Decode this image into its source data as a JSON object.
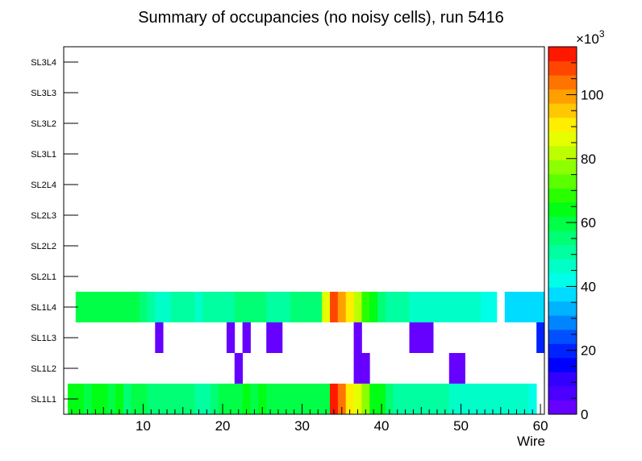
{
  "chart_data": {
    "type": "heatmap",
    "title": "Summary of occupancies (no noisy cells), run 5416",
    "xlabel": "Wire",
    "ylabel": "",
    "xlim": [
      0,
      60.5
    ],
    "x_ticks": [
      10,
      20,
      30,
      40,
      50,
      60
    ],
    "y_categories": [
      "SL1L1",
      "SL1L2",
      "SL1L3",
      "SL1L4",
      "SL2L1",
      "SL2L2",
      "SL2L3",
      "SL2L4",
      "SL3L1",
      "SL3L2",
      "SL3L3",
      "SL3L4"
    ],
    "z_range": [
      0,
      115000
    ],
    "z_ticks": [
      0,
      20,
      40,
      60,
      80,
      100
    ],
    "z_multiplier": "×10",
    "z_exponent": "3",
    "palette": [
      "#6600ff",
      "#4b00ff",
      "#3300ff",
      "#0000ff",
      "#0022ff",
      "#0050ff",
      "#0085ff",
      "#00b3ff",
      "#00dcff",
      "#00ffe8",
      "#00ffc8",
      "#00ffa0",
      "#00ff74",
      "#00ff46",
      "#00ff14",
      "#2aff00",
      "#5cff00",
      "#8cff00",
      "#bdff00",
      "#e6ff00",
      "#ffee00",
      "#ffc800",
      "#ffa000",
      "#ff7400",
      "#ff4600",
      "#ff1800"
    ],
    "rows": [
      {
        "layer": "SL1L1",
        "wires": [
          1,
          2,
          3,
          4,
          5,
          6,
          7,
          8,
          9,
          10,
          11,
          12,
          13,
          14,
          15,
          16,
          17,
          18,
          19,
          20,
          21,
          22,
          23,
          24,
          25,
          26,
          27,
          28,
          29,
          30,
          31,
          32,
          33,
          34,
          35,
          36,
          37,
          38,
          39,
          40,
          41,
          42,
          43,
          44,
          45,
          46,
          47,
          48,
          49,
          50,
          51,
          52,
          53,
          54,
          55,
          56,
          57,
          58,
          59
        ],
        "values": [
          62000,
          66000,
          58000,
          62000,
          66000,
          58000,
          62000,
          56000,
          61000,
          58000,
          56000,
          54000,
          54000,
          54000,
          54000,
          55000,
          52000,
          52000,
          56000,
          58000,
          58000,
          58000,
          62000,
          58000,
          62000,
          58000,
          58000,
          58000,
          58000,
          58000,
          58000,
          58000,
          60000,
          112000,
          104000,
          90000,
          85000,
          76000,
          66000,
          62000,
          56000,
          50000,
          50000,
          50000,
          50000,
          50000,
          50000,
          50000,
          45000,
          45000,
          45000,
          45000,
          45000,
          45000,
          45000,
          45000,
          45000,
          45000,
          40000
        ]
      },
      {
        "layer": "SL1L2",
        "wires": [
          22,
          37,
          38,
          49,
          50
        ],
        "values": [
          3000,
          3000,
          3000,
          3000,
          3000
        ]
      },
      {
        "layer": "SL1L3",
        "wires": [
          12,
          21,
          23,
          26,
          27,
          37,
          44,
          45,
          46,
          60
        ],
        "values": [
          3000,
          3000,
          3000,
          3000,
          3000,
          3000,
          3000,
          3000,
          3000,
          22000
        ]
      },
      {
        "layer": "SL1L4",
        "wires": [
          2,
          3,
          4,
          5,
          6,
          7,
          8,
          9,
          10,
          11,
          12,
          13,
          14,
          15,
          16,
          17,
          18,
          19,
          20,
          21,
          22,
          23,
          24,
          25,
          26,
          27,
          28,
          29,
          30,
          31,
          32,
          33,
          34,
          35,
          36,
          37,
          38,
          39,
          40,
          41,
          42,
          43,
          44,
          45,
          46,
          47,
          48,
          49,
          50,
          51,
          52,
          53,
          54,
          56,
          57,
          58,
          59,
          60
        ],
        "values": [
          58000,
          58000,
          58000,
          58000,
          58000,
          58000,
          58000,
          58000,
          55000,
          52000,
          48000,
          48000,
          52000,
          52000,
          52000,
          48000,
          52000,
          52000,
          52000,
          52000,
          56000,
          56000,
          56000,
          56000,
          52000,
          52000,
          52000,
          56000,
          56000,
          56000,
          56000,
          86000,
          110000,
          100000,
          92000,
          80000,
          68000,
          62000,
          56000,
          52000,
          52000,
          52000,
          45000,
          45000,
          45000,
          45000,
          45000,
          45000,
          45000,
          45000,
          45000,
          40000,
          40000,
          38000,
          38000,
          38000,
          38000,
          38000
        ]
      }
    ]
  }
}
